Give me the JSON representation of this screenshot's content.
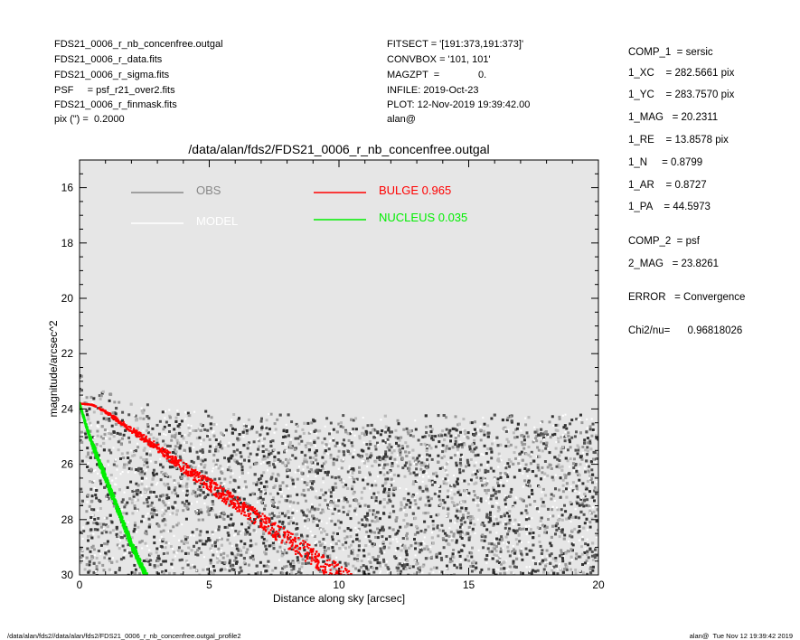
{
  "header_left": [
    "FDS21_0006_r_nb_concenfree.outgal",
    "FDS21_0006_r_data.fits",
    "FDS21_0006_r_sigma.fits",
    "PSF     = psf_r21_over2.fits",
    "FDS21_0006_r_finmask.fits",
    "pix (\") =  0.2000"
  ],
  "header_mid": [
    "FITSECT = '[191:373,191:373]'",
    "CONVBOX = '101, 101'",
    "MAGZPT  =              0.",
    "INFILE: 2019-Oct-23",
    "PLOT: 12-Nov-2019 19:39:42.00",
    "alan@"
  ],
  "params": [
    "COMP_1  = sersic",
    "1_XC    = 282.5661 pix",
    "1_YC    = 283.7570 pix",
    "1_MAG   = 20.2311",
    "1_RE    = 13.8578 pix",
    "1_N     = 0.8799",
    "1_AR    = 0.8727",
    "1_PA    = 44.5973",
    "COMP_2  = psf",
    "2_MAG   = 23.8261",
    "ERROR   = Convergence",
    "Chi2/nu=      0.96818026"
  ],
  "footer_left": "/data/alan/fds2//data/alan/fds2/FDS21_0006_r_nb_concenfree.outgal_profile2",
  "footer_right": "alan@  Tue Nov 12 19:39:42 2019",
  "chart_data": {
    "type": "scatter",
    "title": "/data/alan/fds2/FDS21_0006_r_nb_concenfree.outgal",
    "xlabel": "Distance along sky [arcsec]",
    "ylabel": "magnitude/arcsec^2",
    "xlim": [
      0,
      20
    ],
    "ylim": [
      30,
      15
    ],
    "y_inverted": true,
    "x_ticks": [
      0,
      5,
      10,
      15,
      20
    ],
    "y_ticks": [
      16,
      18,
      20,
      22,
      24,
      26,
      28,
      30
    ],
    "background": "#e6e6e6",
    "legend": [
      {
        "label": "OBS",
        "color": "#888888"
      },
      {
        "label": "MODEL",
        "color": "#ffffff"
      },
      {
        "label": "BULGE  0.965",
        "color": "#ff0000"
      },
      {
        "label": "NUCLEUS  0.035",
        "color": "#00ee00"
      }
    ],
    "series": [
      {
        "name": "OBS",
        "kind": "scatter-cloud",
        "colors": [
          "#333333",
          "#555555",
          "#999999",
          "#bbbbbb",
          "#ffffff"
        ],
        "x_range": [
          0,
          20
        ],
        "lower_envelope": {
          "x": [
            0.1,
            0.5,
            1,
            2,
            3,
            4,
            5,
            6,
            8,
            10,
            12,
            15,
            20
          ],
          "y": [
            23.2,
            23.6,
            23.9,
            24.2,
            24.4,
            24.5,
            24.6,
            24.6,
            24.7,
            24.7,
            24.7,
            24.7,
            24.7
          ]
        },
        "upper_limit": 30
      },
      {
        "name": "BULGE  0.965",
        "kind": "band",
        "color": "#ff0000",
        "x": [
          0,
          0.5,
          1,
          2,
          3,
          4,
          5,
          6,
          7,
          8,
          9,
          10,
          10.5
        ],
        "y": [
          23.8,
          23.85,
          24.1,
          24.75,
          25.4,
          26.1,
          26.75,
          27.4,
          28.05,
          28.7,
          29.35,
          30.0,
          30.3
        ],
        "spread": [
          0,
          0.02,
          0.08,
          0.2,
          0.3,
          0.4,
          0.5,
          0.55,
          0.6,
          0.65,
          0.7,
          0.75,
          0.8
        ]
      },
      {
        "name": "NUCLEUS  0.035",
        "kind": "band",
        "color": "#00ee00",
        "x": [
          0,
          0.25,
          0.5,
          0.75,
          1,
          1.25,
          1.5,
          1.75,
          2,
          2.25,
          2.5,
          2.7
        ],
        "y": [
          23.8,
          24.6,
          25.3,
          25.9,
          26.5,
          27.1,
          27.7,
          28.3,
          28.9,
          29.4,
          29.9,
          30.2
        ],
        "spread": [
          0.05,
          0.15,
          0.25,
          0.3,
          0.3,
          0.3,
          0.3,
          0.3,
          0.3,
          0.3,
          0.25,
          0.2
        ]
      }
    ]
  }
}
